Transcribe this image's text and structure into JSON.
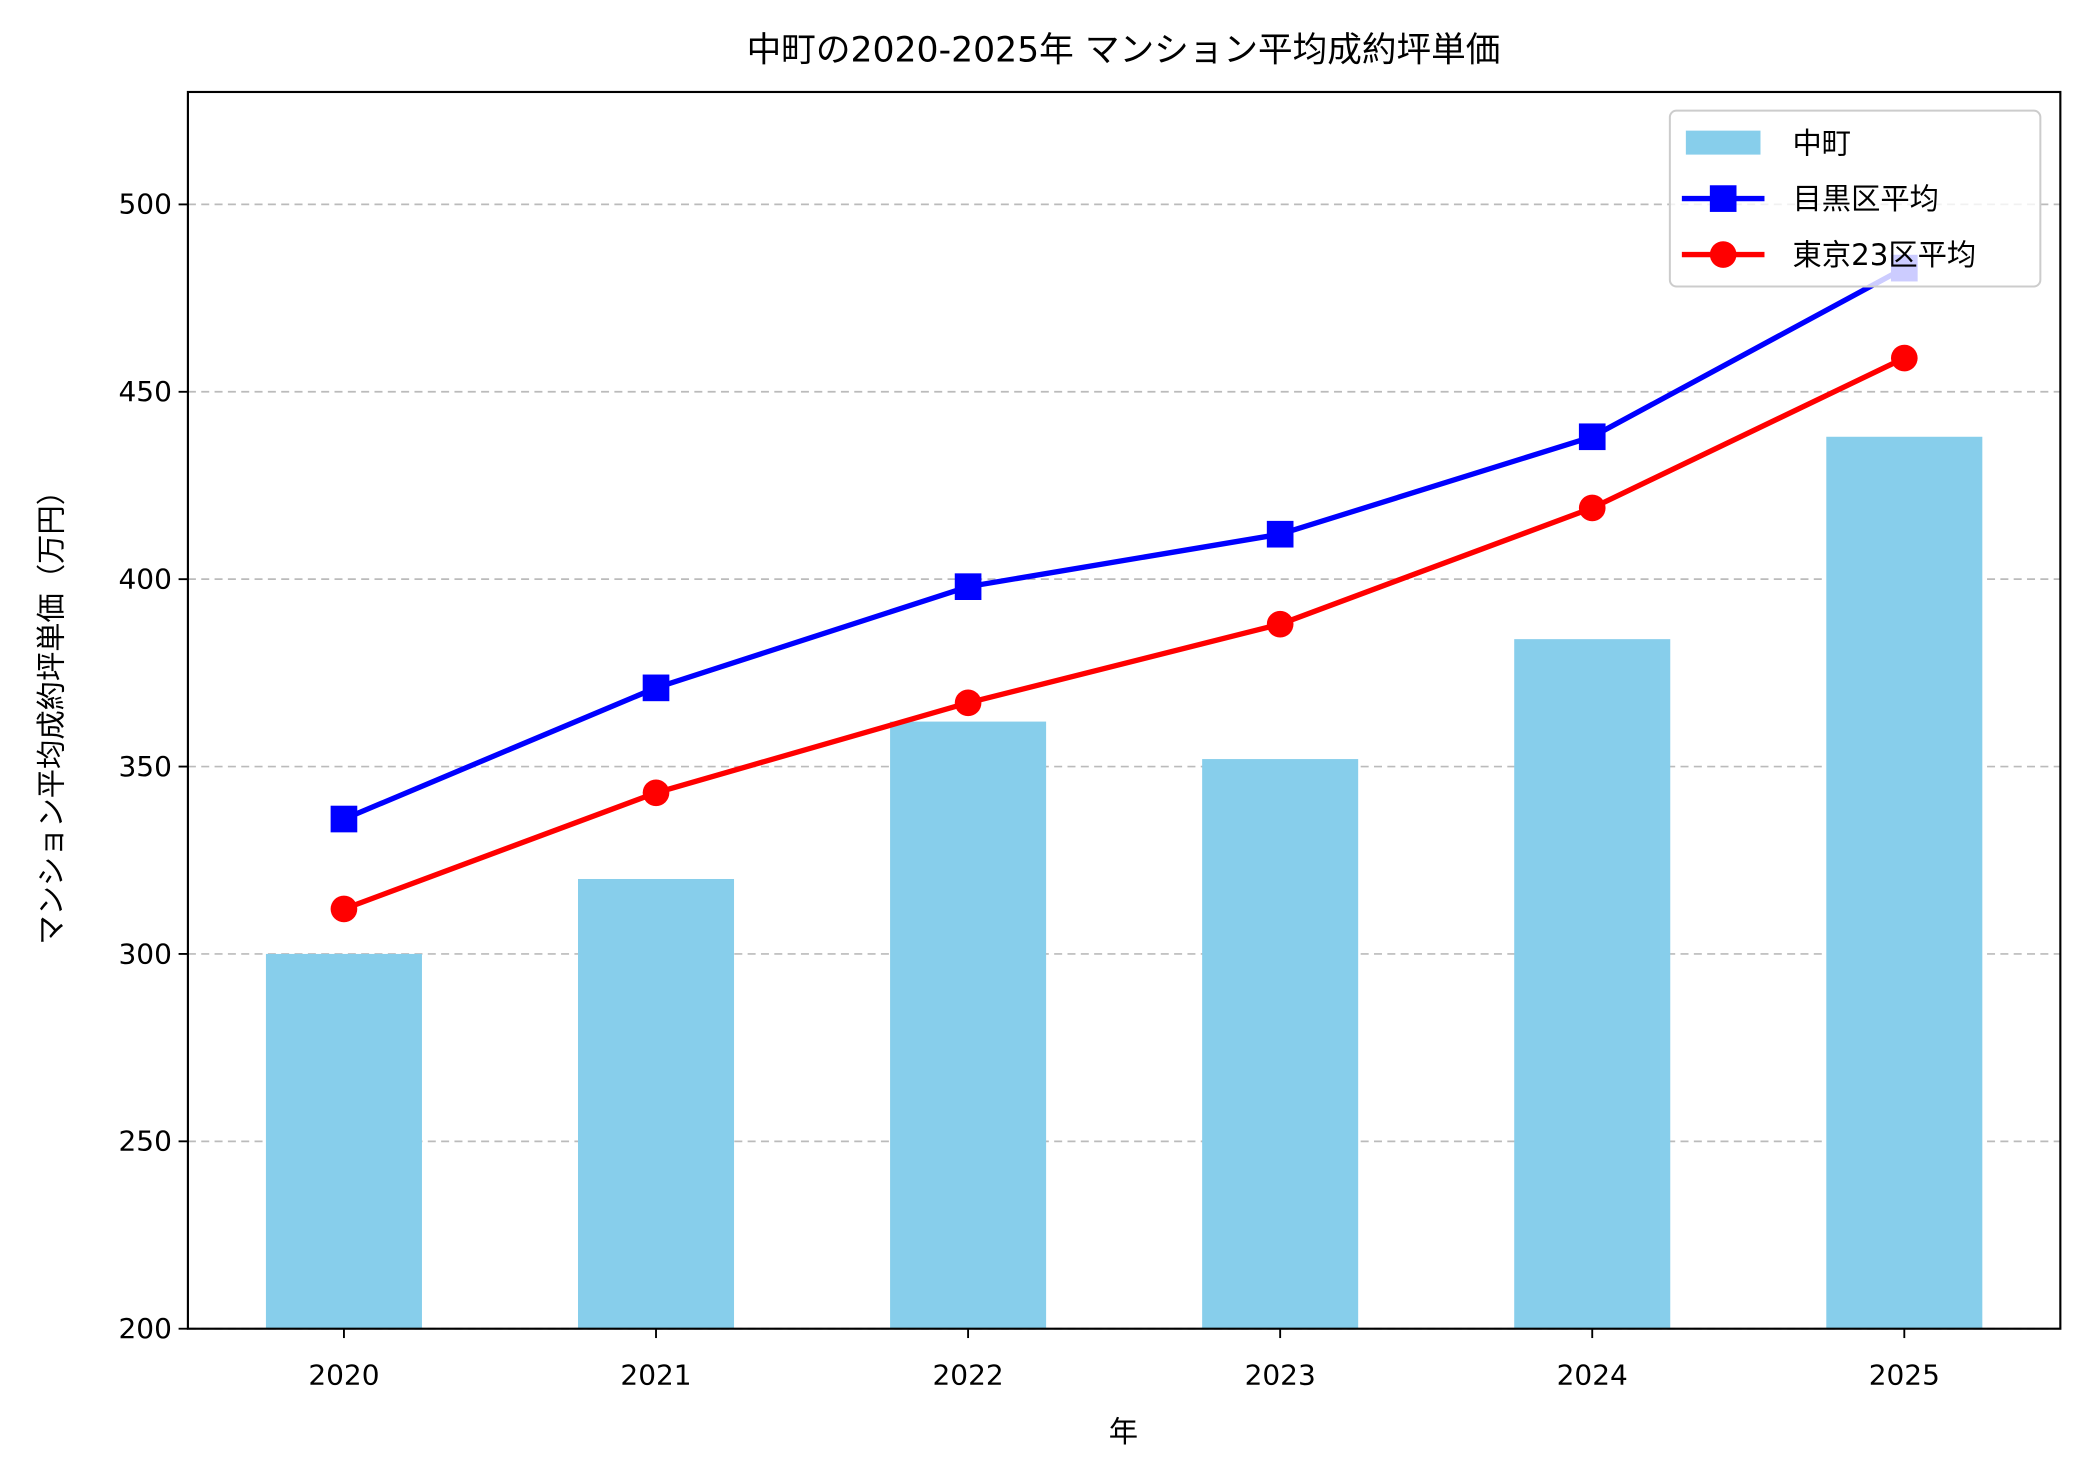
{
  "chart_data": {
    "type": "bar+line",
    "title": "中町の2020-2025年 マンション平均成約坪単価",
    "xlabel": "年",
    "ylabel": "マンション平均成約坪単価（万円）",
    "categories": [
      "2020",
      "2021",
      "2022",
      "2023",
      "2024",
      "2025"
    ],
    "ylim": [
      200,
      530
    ],
    "yticks": [
      200,
      250,
      300,
      350,
      400,
      450,
      500
    ],
    "grid": "y-dashed",
    "legend_position": "top-right",
    "series": [
      {
        "name": "中町",
        "kind": "bar",
        "color": "#87CEEB",
        "values": [
          300,
          320,
          362,
          352,
          384,
          438
        ]
      },
      {
        "name": "目黒区平均",
        "kind": "line",
        "marker": "square",
        "color": "#0000FF",
        "values": [
          336,
          371,
          398,
          412,
          438,
          483
        ]
      },
      {
        "name": "東京23区平均",
        "kind": "line",
        "marker": "circle",
        "color": "#FF0000",
        "values": [
          312,
          343,
          367,
          388,
          419,
          459
        ]
      }
    ]
  }
}
